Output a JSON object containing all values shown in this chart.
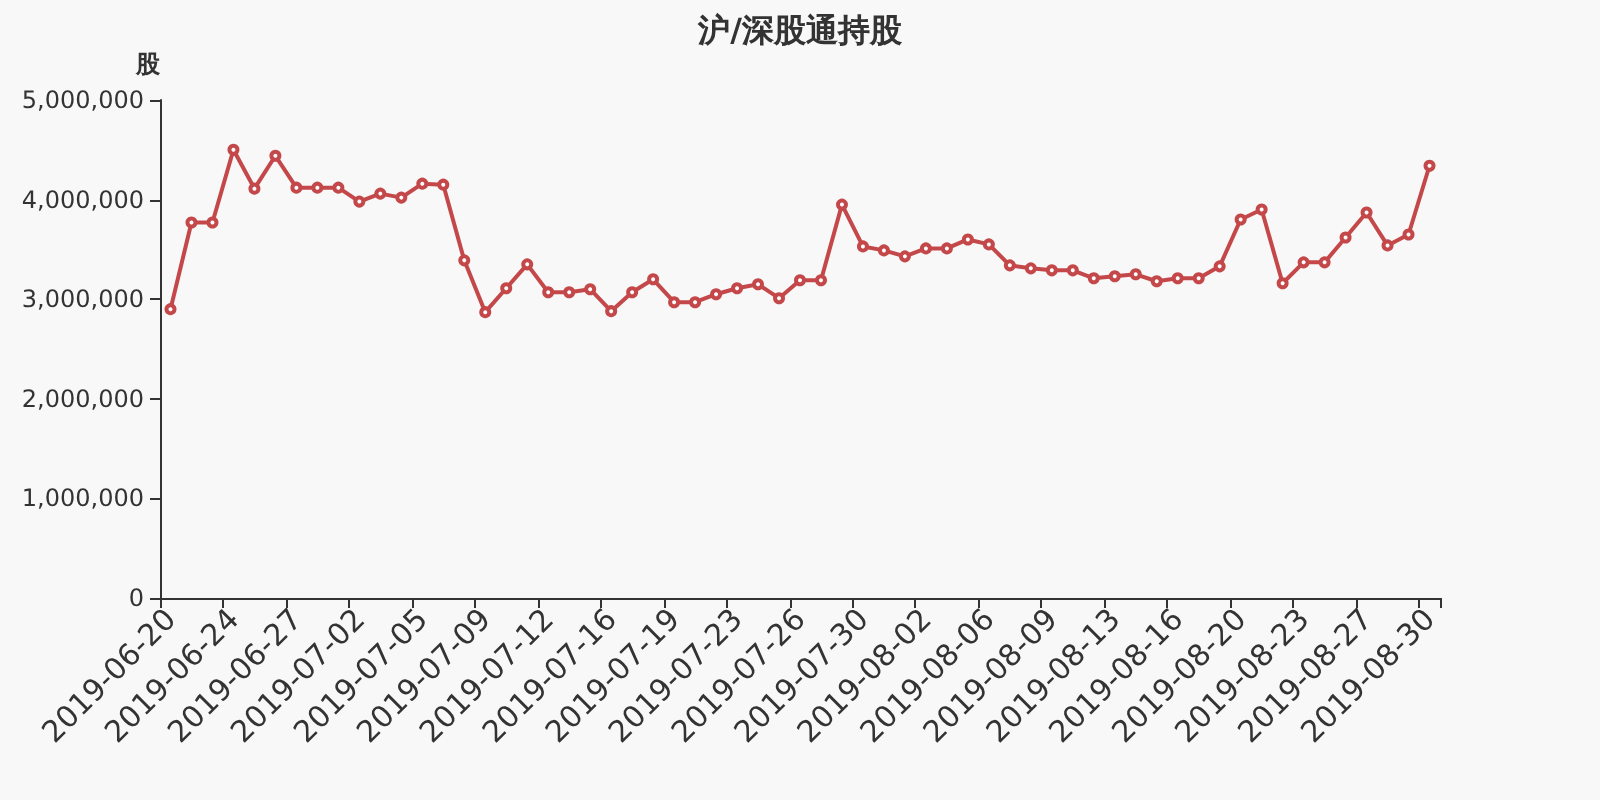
{
  "chart_data": {
    "type": "line",
    "title": "沪/深股通持股",
    "ylabel": "股",
    "categories": [
      "2019-06-20",
      null,
      null,
      "2019-06-24",
      null,
      null,
      "2019-06-27",
      null,
      null,
      "2019-07-02",
      null,
      null,
      "2019-07-05",
      null,
      null,
      "2019-07-09",
      null,
      null,
      "2019-07-12",
      null,
      null,
      "2019-07-16",
      null,
      null,
      "2019-07-19",
      null,
      null,
      "2019-07-23",
      null,
      null,
      "2019-07-26",
      null,
      null,
      "2019-07-30",
      null,
      null,
      "2019-08-02",
      null,
      null,
      "2019-08-06",
      null,
      null,
      "2019-08-09",
      null,
      null,
      "2019-08-13",
      null,
      null,
      "2019-08-16",
      null,
      null,
      "2019-08-20",
      null,
      null,
      "2019-08-23",
      null,
      null,
      "2019-08-27",
      null,
      null,
      "2019-08-30"
    ],
    "series": [
      {
        "color": "#c4484a",
        "values": [
          2900000,
          3770000,
          3770000,
          4500000,
          4110000,
          4440000,
          4120000,
          4120000,
          4120000,
          3980000,
          4060000,
          4020000,
          4160000,
          4150000,
          3390000,
          2870000,
          3110000,
          3350000,
          3070000,
          3070000,
          3100000,
          2880000,
          3070000,
          3200000,
          2970000,
          2970000,
          3050000,
          3110000,
          3150000,
          3010000,
          3190000,
          3190000,
          3950000,
          3530000,
          3490000,
          3430000,
          3510000,
          3510000,
          3600000,
          3550000,
          3340000,
          3310000,
          3290000,
          3290000,
          3210000,
          3230000,
          3250000,
          3180000,
          3210000,
          3210000,
          3330000,
          3800000,
          3900000,
          3160000,
          3370000,
          3370000,
          3620000,
          3870000,
          3540000,
          3650000,
          4340000
        ]
      }
    ],
    "ylim": [
      0,
      5000000
    ],
    "yticks": [
      0,
      {
        "value": 1000000,
        "label": "1,000,000"
      },
      {
        "value": 2000000,
        "label": "2,000,000"
      },
      {
        "value": 3000000,
        "label": "3,000,000"
      },
      {
        "value": 4000000,
        "label": "4,000,000"
      },
      {
        "value": 5000000,
        "label": "5,000,000"
      }
    ],
    "grid": false,
    "marker": "circle",
    "line_style": "solid"
  }
}
